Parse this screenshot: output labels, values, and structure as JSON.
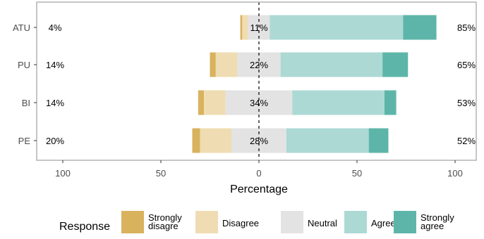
{
  "chart_data": {
    "type": "bar",
    "subtype": "diverging-stacked-likert",
    "categories": [
      "ATU",
      "PU",
      "BI",
      "PE"
    ],
    "xlabel": "Percentage",
    "ylabel": "",
    "xlim": [
      -115,
      115
    ],
    "x_ticks": [
      -100,
      -50,
      0,
      50,
      100
    ],
    "x_tick_labels": [
      "100",
      "50",
      "0",
      "50",
      "100"
    ],
    "grid": false,
    "legend": {
      "position": "bottom",
      "title": "Response",
      "entries": [
        {
          "label_lines": [
            "Strongly",
            "disagre"
          ]
        },
        {
          "label_lines": [
            "Disagree"
          ]
        },
        {
          "label_lines": [
            "Neutral"
          ]
        },
        {
          "label_lines": [
            "Agree"
          ]
        },
        {
          "label_lines": [
            "Strongly",
            "agree"
          ]
        }
      ]
    },
    "series": [
      {
        "key": "strongly_disagree",
        "color": "#d9b25e",
        "values": [
          1,
          3,
          3,
          4
        ]
      },
      {
        "key": "disagree",
        "color": "#efdcb2",
        "values": [
          3,
          11,
          11,
          16
        ]
      },
      {
        "key": "neutral",
        "color": "#e3e3e3",
        "values": [
          11,
          22,
          34,
          28
        ]
      },
      {
        "key": "agree",
        "color": "#acd9d4",
        "values": [
          68,
          52,
          47,
          42
        ]
      },
      {
        "key": "strongly_agree",
        "color": "#5db5a9",
        "values": [
          17,
          13,
          6,
          10
        ]
      }
    ],
    "annotations": {
      "left_pct": [
        "4%",
        "14%",
        "14%",
        "20%"
      ],
      "center_pct": [
        "11%",
        "22%",
        "34%",
        "28%"
      ],
      "right_pct": [
        "85%",
        "65%",
        "53%",
        "52%"
      ]
    }
  }
}
